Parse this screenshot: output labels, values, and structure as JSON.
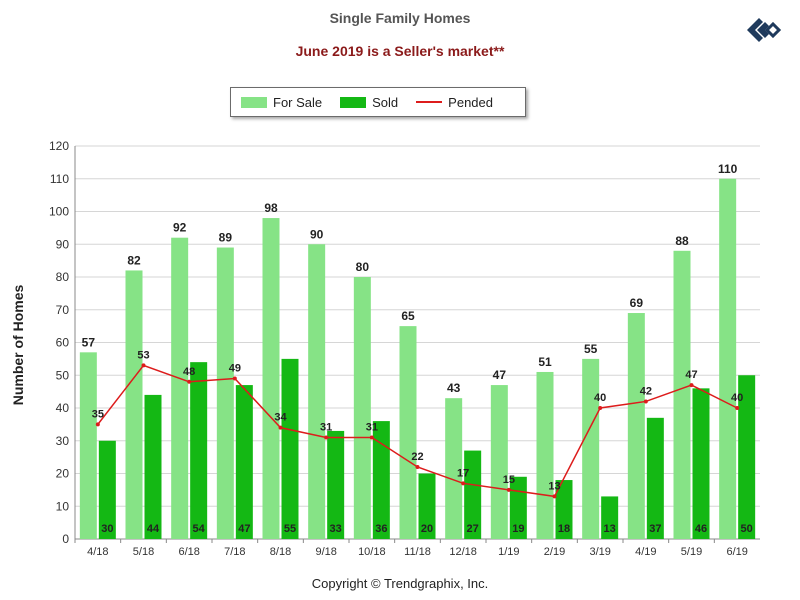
{
  "chart_title": "Single Family Homes",
  "chart_subtitle": "June 2019 is a Seller's market**",
  "footer": "Copyright © Trendgraphix, Inc.",
  "colors": {
    "for_sale": "#86e386",
    "sold": "#14b814",
    "pended": "#dd1c1c",
    "subtitle": "#8b1a1a"
  },
  "chart_data": {
    "type": "bar",
    "title": "Single Family Homes",
    "subtitle": "June 2019 is a Seller's market**",
    "xlabel": "",
    "ylabel": "Number of Homes",
    "ylim": [
      0,
      120
    ],
    "yticks": [
      0,
      10,
      20,
      30,
      40,
      50,
      60,
      70,
      80,
      90,
      100,
      110,
      120
    ],
    "grid": true,
    "legend_position": "top",
    "categories": [
      "4/18",
      "5/18",
      "6/18",
      "7/18",
      "8/18",
      "9/18",
      "10/18",
      "11/18",
      "12/18",
      "1/19",
      "2/19",
      "3/19",
      "4/19",
      "5/19",
      "6/19"
    ],
    "series": [
      {
        "name": "For Sale",
        "type": "bar",
        "values": [
          57,
          82,
          92,
          89,
          98,
          90,
          80,
          65,
          43,
          47,
          51,
          55,
          69,
          88,
          110
        ]
      },
      {
        "name": "Sold",
        "type": "bar",
        "values": [
          30,
          44,
          54,
          47,
          55,
          33,
          36,
          20,
          27,
          19,
          18,
          13,
          37,
          46,
          50
        ]
      },
      {
        "name": "Pended",
        "type": "line",
        "values": [
          35,
          53,
          48,
          49,
          34,
          31,
          31,
          22,
          17,
          15,
          13,
          40,
          42,
          47,
          40
        ]
      }
    ]
  }
}
